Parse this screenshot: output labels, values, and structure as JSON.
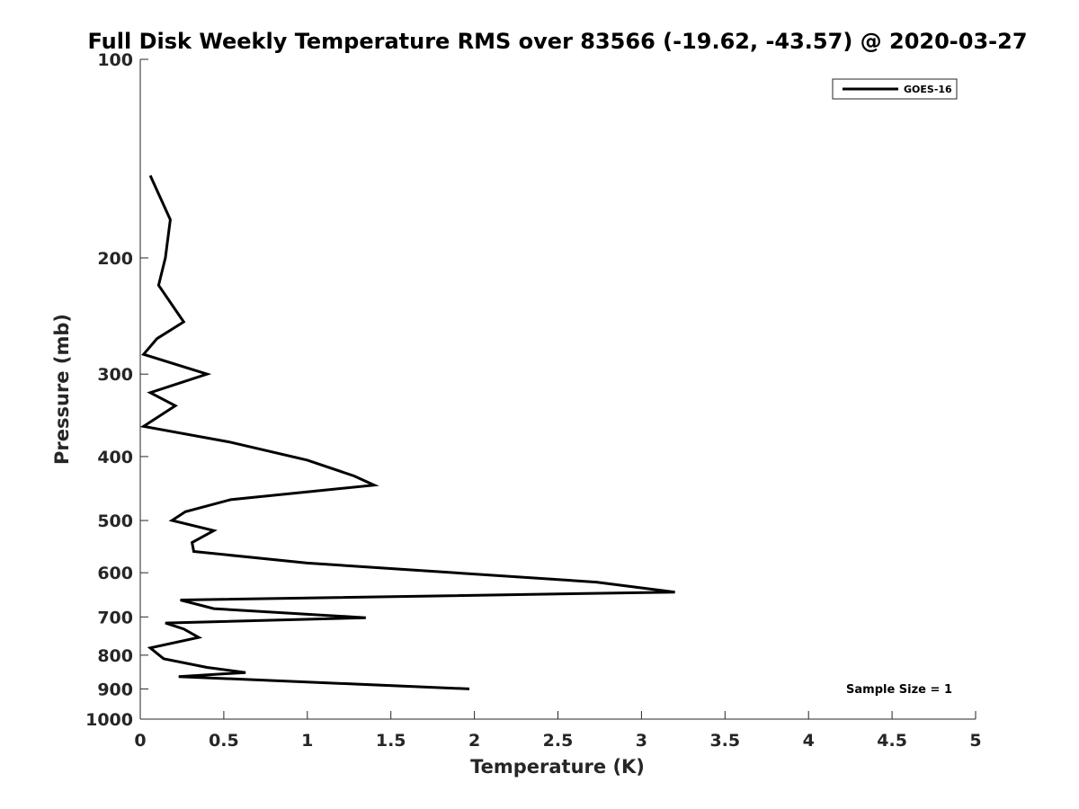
{
  "chart_data": {
    "type": "line",
    "title": "Full Disk Weekly Temperature RMS over 83566 (-19.62, -43.57) @ 2020-03-27",
    "xlabel": "Temperature (K)",
    "ylabel": "Pressure (mb)",
    "xlim": [
      0,
      5
    ],
    "ylim": [
      100,
      1000
    ],
    "y_scale": "log",
    "y_reversed": true,
    "grid": false,
    "x_ticks": [
      0,
      0.5,
      1,
      1.5,
      2,
      2.5,
      3,
      3.5,
      4,
      4.5,
      5
    ],
    "x_tick_labels": [
      "0",
      "0.5",
      "1",
      "1.5",
      "2",
      "2.5",
      "3",
      "3.5",
      "4",
      "4.5",
      "5"
    ],
    "y_ticks": [
      100,
      200,
      300,
      400,
      500,
      600,
      700,
      800,
      900,
      1000
    ],
    "y_tick_labels": [
      "100",
      "200",
      "300",
      "400",
      "500",
      "600",
      "700",
      "800",
      "900",
      "1000"
    ],
    "legend": {
      "location": "top-right",
      "entries": [
        "GOES-16"
      ]
    },
    "annotations": [
      "Sample Size = 1"
    ],
    "series": [
      {
        "name": "GOES-16",
        "color": "#000000",
        "points": [
          {
            "x": 0.06,
            "y": 150
          },
          {
            "x": 0.18,
            "y": 175
          },
          {
            "x": 0.15,
            "y": 200
          },
          {
            "x": 0.11,
            "y": 220
          },
          {
            "x": 0.26,
            "y": 250
          },
          {
            "x": 0.1,
            "y": 265
          },
          {
            "x": 0.02,
            "y": 280
          },
          {
            "x": 0.4,
            "y": 300
          },
          {
            "x": 0.06,
            "y": 320
          },
          {
            "x": 0.21,
            "y": 335
          },
          {
            "x": 0.02,
            "y": 360
          },
          {
            "x": 0.53,
            "y": 380
          },
          {
            "x": 1.0,
            "y": 405
          },
          {
            "x": 1.28,
            "y": 428
          },
          {
            "x": 1.4,
            "y": 442
          },
          {
            "x": 0.54,
            "y": 465
          },
          {
            "x": 0.27,
            "y": 485
          },
          {
            "x": 0.19,
            "y": 500
          },
          {
            "x": 0.44,
            "y": 518
          },
          {
            "x": 0.31,
            "y": 540
          },
          {
            "x": 0.32,
            "y": 557
          },
          {
            "x": 1.0,
            "y": 580
          },
          {
            "x": 2.73,
            "y": 620
          },
          {
            "x": 3.2,
            "y": 642
          },
          {
            "x": 0.24,
            "y": 660
          },
          {
            "x": 0.44,
            "y": 680
          },
          {
            "x": 1.35,
            "y": 702
          },
          {
            "x": 0.15,
            "y": 715
          },
          {
            "x": 0.26,
            "y": 730
          },
          {
            "x": 0.35,
            "y": 752
          },
          {
            "x": 0.06,
            "y": 780
          },
          {
            "x": 0.14,
            "y": 810
          },
          {
            "x": 0.4,
            "y": 835
          },
          {
            "x": 0.63,
            "y": 850
          },
          {
            "x": 0.23,
            "y": 862
          },
          {
            "x": 1.97,
            "y": 900
          }
        ]
      }
    ]
  }
}
